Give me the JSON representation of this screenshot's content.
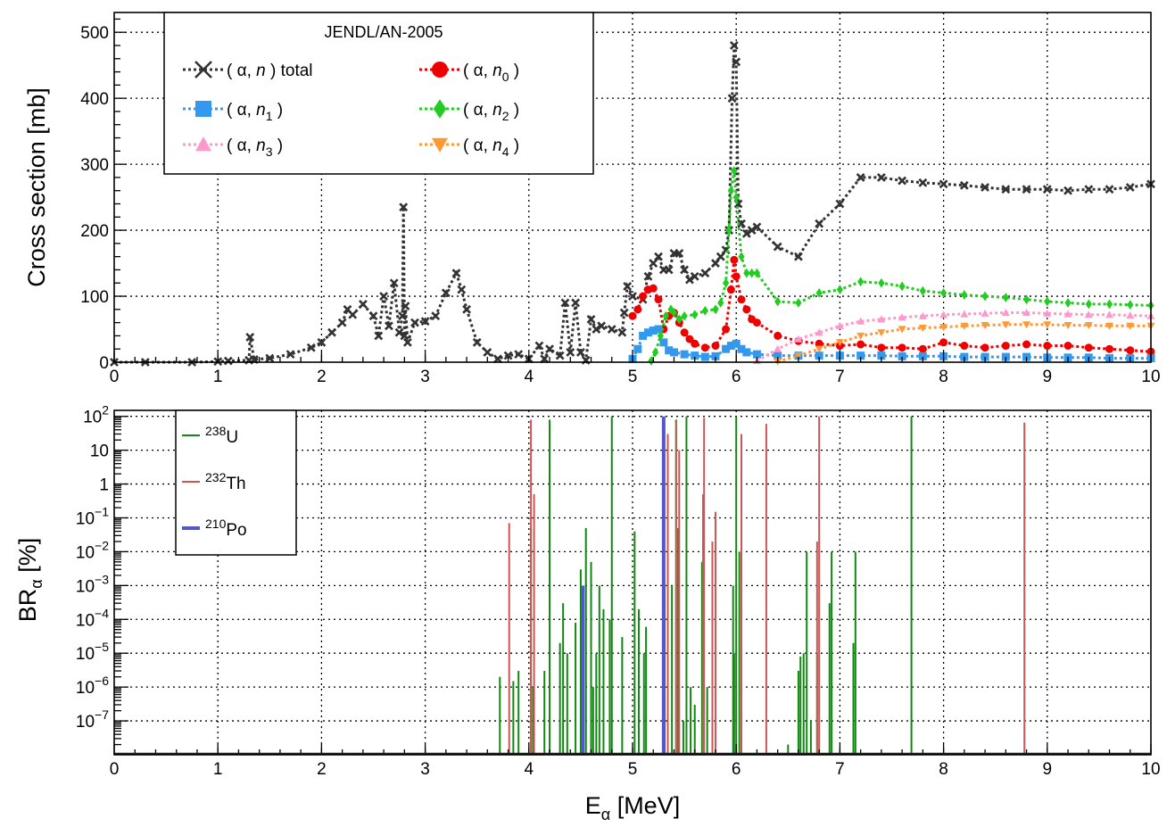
{
  "colors": {
    "total": "#333333",
    "n0": "#ee0000",
    "n1": "#3399ee",
    "n2": "#22cc22",
    "n3": "#ff99cc",
    "n4": "#ff9933",
    "u238": "#118811",
    "th232": "#cc5555",
    "po210": "#5555cc"
  },
  "chart_data": [
    {
      "type": "line",
      "legend_title": "JENDL/AN-2005",
      "ylabel": "Cross section [mb]",
      "xlabel": "",
      "xlim": [
        0,
        10
      ],
      "ylim": [
        0,
        530
      ],
      "grid": true,
      "legend_position": "top-left",
      "x_ticks": [
        "0",
        "1",
        "2",
        "3",
        "4",
        "5",
        "6",
        "7",
        "8",
        "9",
        "10"
      ],
      "y_ticks": [
        "0",
        "100",
        "200",
        "300",
        "400",
        "500"
      ],
      "series": [
        {
          "id": "total",
          "name": "( α, n ) total",
          "marker": "x",
          "x": [
            0,
            0.3,
            0.75,
            1.0,
            1.1,
            1.3,
            1.31,
            1.35,
            1.5,
            1.7,
            1.9,
            2.0,
            2.1,
            2.2,
            2.25,
            2.3,
            2.4,
            2.5,
            2.55,
            2.6,
            2.65,
            2.7,
            2.75,
            2.78,
            2.79,
            2.8,
            2.81,
            2.83,
            2.9,
            3.0,
            3.1,
            3.2,
            3.3,
            3.35,
            3.4,
            3.5,
            3.6,
            3.7,
            3.8,
            3.9,
            4.0,
            4.1,
            4.15,
            4.2,
            4.3,
            4.35,
            4.4,
            4.45,
            4.5,
            4.55,
            4.6,
            4.65,
            4.7,
            4.8,
            4.9,
            4.92,
            4.95,
            5.0,
            5.1,
            5.15,
            5.2,
            5.25,
            5.3,
            5.35,
            5.4,
            5.45,
            5.5,
            5.55,
            5.6,
            5.7,
            5.8,
            5.85,
            5.9,
            5.93,
            5.96,
            5.98,
            6.0,
            6.02,
            6.05,
            6.1,
            6.15,
            6.2,
            6.4,
            6.6,
            6.8,
            7.0,
            7.2,
            7.4,
            7.6,
            7.8,
            8.0,
            8.2,
            8.4,
            8.6,
            8.8,
            9.0,
            9.2,
            9.4,
            9.6,
            9.8,
            10.0
          ],
          "y": [
            0,
            0,
            0,
            1,
            2,
            3,
            38,
            4,
            6,
            12,
            22,
            30,
            45,
            60,
            80,
            72,
            88,
            70,
            40,
            100,
            55,
            120,
            45,
            70,
            235,
            40,
            85,
            30,
            60,
            62,
            70,
            105,
            135,
            110,
            80,
            30,
            15,
            5,
            10,
            12,
            5,
            25,
            5,
            20,
            10,
            90,
            15,
            90,
            15,
            3,
            65,
            50,
            55,
            50,
            45,
            75,
            115,
            100,
            95,
            130,
            150,
            160,
            140,
            140,
            165,
            165,
            140,
            125,
            130,
            135,
            150,
            160,
            170,
            200,
            400,
            480,
            455,
            240,
            210,
            195,
            200,
            205,
            175,
            160,
            210,
            240,
            280,
            280,
            275,
            272,
            270,
            268,
            265,
            262,
            262,
            262,
            260,
            262,
            262,
            265,
            270
          ]
        },
        {
          "id": "n0",
          "name": "( α, n0 )",
          "marker": "circle",
          "x": [
            5.0,
            5.05,
            5.1,
            5.15,
            5.2,
            5.25,
            5.3,
            5.35,
            5.4,
            5.45,
            5.5,
            5.55,
            5.6,
            5.7,
            5.8,
            5.9,
            5.95,
            5.98,
            6.0,
            6.05,
            6.1,
            6.15,
            6.2,
            6.4,
            6.6,
            6.8,
            7.0,
            7.2,
            7.4,
            7.6,
            7.8,
            8.0,
            8.2,
            8.4,
            8.6,
            8.8,
            9.0,
            9.2,
            9.4,
            9.6,
            9.8,
            10.0
          ],
          "y": [
            70,
            80,
            100,
            110,
            112,
            95,
            50,
            70,
            75,
            60,
            45,
            35,
            28,
            22,
            25,
            50,
            110,
            155,
            130,
            95,
            80,
            65,
            60,
            40,
            32,
            28,
            25,
            27,
            22,
            22,
            20,
            30,
            25,
            22,
            25,
            27,
            25,
            25,
            22,
            20,
            18,
            16
          ]
        },
        {
          "id": "n1",
          "name": "( α, n1 )",
          "marker": "square",
          "x": [
            5.0,
            5.05,
            5.1,
            5.15,
            5.2,
            5.25,
            5.3,
            5.35,
            5.4,
            5.5,
            5.6,
            5.7,
            5.8,
            5.9,
            5.95,
            6.0,
            6.05,
            6.1,
            6.2,
            6.4,
            6.6,
            6.8,
            7.0,
            7.2,
            7.4,
            7.6,
            7.8,
            8.0,
            8.2,
            8.4,
            8.6,
            8.8,
            9.0,
            9.2,
            9.4,
            9.6,
            9.8,
            10.0
          ],
          "y": [
            5,
            20,
            40,
            45,
            48,
            50,
            30,
            18,
            15,
            12,
            10,
            8,
            9,
            20,
            25,
            28,
            20,
            15,
            12,
            10,
            10,
            10,
            10,
            10,
            10,
            9,
            9,
            9,
            8,
            8,
            8,
            8,
            7,
            7,
            7,
            6,
            6,
            6
          ]
        },
        {
          "id": "n2",
          "name": "( α, n2 )",
          "marker": "diamond",
          "x": [
            5.18,
            5.22,
            5.27,
            5.32,
            5.37,
            5.4,
            5.45,
            5.5,
            5.6,
            5.7,
            5.8,
            5.85,
            5.9,
            5.93,
            5.95,
            5.98,
            6.0,
            6.05,
            6.1,
            6.15,
            6.2,
            6.4,
            6.6,
            6.8,
            7.0,
            7.2,
            7.4,
            7.6,
            7.8,
            8.0,
            8.2,
            8.4,
            8.6,
            8.8,
            9.0,
            9.2,
            9.4,
            9.6,
            9.8,
            10.0
          ],
          "y": [
            2,
            15,
            40,
            70,
            80,
            75,
            65,
            70,
            72,
            78,
            80,
            90,
            120,
            200,
            260,
            290,
            250,
            160,
            135,
            135,
            135,
            92,
            90,
            105,
            110,
            122,
            120,
            115,
            108,
            105,
            102,
            100,
            98,
            95,
            92,
            90,
            88,
            88,
            87,
            86
          ]
        },
        {
          "id": "n3",
          "name": "( α, n3 )",
          "marker": "triangle-up",
          "x": [
            6.2,
            6.4,
            6.6,
            6.8,
            7.0,
            7.2,
            7.4,
            7.6,
            7.8,
            8.0,
            8.2,
            8.4,
            8.6,
            8.8,
            9.0,
            9.2,
            9.4,
            9.6,
            9.8,
            10.0
          ],
          "y": [
            2,
            20,
            35,
            45,
            55,
            62,
            65,
            68,
            70,
            72,
            73,
            74,
            75,
            75,
            74,
            73,
            72,
            72,
            71,
            70
          ]
        },
        {
          "id": "n4",
          "name": "( α, n4 )",
          "marker": "triangle-down",
          "x": [
            6.4,
            6.6,
            6.8,
            7.0,
            7.2,
            7.4,
            7.6,
            7.8,
            8.0,
            8.2,
            8.4,
            8.6,
            8.8,
            9.0,
            9.2,
            9.4,
            9.6,
            9.8,
            10.0
          ],
          "y": [
            1,
            10,
            20,
            30,
            40,
            45,
            50,
            52,
            53,
            55,
            56,
            57,
            57,
            57,
            56,
            56,
            55,
            55,
            55
          ]
        }
      ]
    },
    {
      "type": "bar",
      "ylabel": "BR",
      "ylabel_subscript": "α",
      "ylabel_suffix": " [%]",
      "xlabel": "E",
      "xlabel_subscript": "α",
      "xlabel_suffix": " [MeV]",
      "xlim": [
        0,
        10
      ],
      "y_scale": "log",
      "ylim": [
        1e-08,
        150
      ],
      "grid": true,
      "legend_position": "top-left",
      "x_ticks": [
        "0",
        "1",
        "2",
        "3",
        "4",
        "5",
        "6",
        "7",
        "8",
        "9",
        "10"
      ],
      "y_ticks": [
        {
          "value": 100,
          "base": "10",
          "exp": "2"
        },
        {
          "value": 10,
          "base": "10",
          "exp": ""
        },
        {
          "value": 1,
          "base": "1",
          "exp": ""
        },
        {
          "value": 0.1,
          "base": "10",
          "exp": "−1"
        },
        {
          "value": 0.01,
          "base": "10",
          "exp": "−2"
        },
        {
          "value": 0.001,
          "base": "10",
          "exp": "−3"
        },
        {
          "value": 0.0001,
          "base": "10",
          "exp": "−4"
        },
        {
          "value": 1e-05,
          "base": "10",
          "exp": "−5"
        },
        {
          "value": 1e-06,
          "base": "10",
          "exp": "−6"
        },
        {
          "value": 1e-07,
          "base": "10",
          "exp": "−7"
        }
      ],
      "series": [
        {
          "id": "u238",
          "name_sup": "238",
          "name": "U",
          "x": [
            3.72,
            3.85,
            3.9,
            4.02,
            4.04,
            4.15,
            4.2,
            4.3,
            4.33,
            4.37,
            4.45,
            4.5,
            4.55,
            4.6,
            4.62,
            4.65,
            4.68,
            4.72,
            4.78,
            4.8,
            4.9,
            5.02,
            5.06,
            5.11,
            5.13,
            5.31,
            5.34,
            5.38,
            5.42,
            5.44,
            5.49,
            5.52,
            5.56,
            5.6,
            5.67,
            5.72,
            5.97,
            5.98,
            6.0,
            6.03,
            6.5,
            6.6,
            6.62,
            6.65,
            6.68,
            6.72,
            6.78,
            6.9,
            6.92,
            7.13,
            7.15,
            7.69
          ],
          "y": [
            2e-06,
            1.5e-06,
            3e-06,
            0.05,
            1e-06,
            3e-06,
            80,
            2e-05,
            0.0003,
            1e-05,
            8e-05,
            0.003,
            0.05,
            0.005,
            1e-06,
            1e-05,
            0.001,
            0.0002,
            0.0001,
            100,
            3e-05,
            0.04,
            0.0002,
            1e-05,
            6e-05,
            0.001,
            0.3,
            0.001,
            80,
            0.05,
            1e-07,
            100,
            1e-06,
            3e-07,
            0.005,
            1e-06,
            0.001,
            1e-05,
            100,
            0.01,
            2e-08,
            3e-06,
            8e-06,
            1e-05,
            0.01,
            1e-07,
            1e-05,
            0.0003,
            0.01,
            2e-05,
            0.01,
            100
          ]
        },
        {
          "id": "th232",
          "name_sup": "232",
          "name": "Th",
          "x": [
            3.81,
            4.02,
            4.05,
            5.34,
            5.42,
            5.45,
            5.68,
            5.69,
            5.77,
            5.8,
            6.05,
            6.29,
            6.78,
            6.8,
            8.78
          ],
          "y": [
            0.07,
            80,
            0.5,
            30,
            70,
            10,
            0.5,
            90,
            0.02,
            0.15,
            30,
            60,
            0.02,
            100,
            65
          ]
        },
        {
          "id": "po210",
          "name_sup": "210",
          "name": "Po",
          "x": [
            4.52,
            5.3
          ],
          "y": [
            0.001,
            100
          ]
        }
      ]
    }
  ]
}
